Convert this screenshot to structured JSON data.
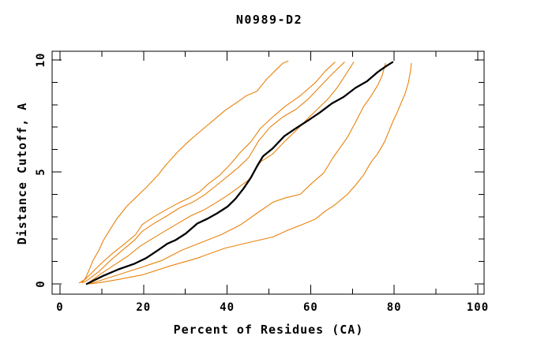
{
  "title": "N0989-D2",
  "axes": {
    "x_title": "Percent of Residues (CA)",
    "y_title": "Distance Cutoff, A",
    "x_tick_labels": [
      "0",
      "20",
      "40",
      "60",
      "80",
      "100"
    ],
    "x_tick_values": [
      0,
      20,
      40,
      60,
      80,
      100
    ],
    "x_minor_step": 10,
    "y_tick_labels": [
      "0",
      "5",
      "10"
    ],
    "y_tick_values": [
      0,
      5,
      10
    ],
    "y_minor_step": 1
  },
  "colors": {
    "model_curve": "#ea820c",
    "highlight_curve": "#000000",
    "axis": "#000000",
    "background": "#ffffff"
  },
  "chart_data": {
    "type": "line",
    "title": "N0989-D2",
    "xlabel": "Percent of Residues (CA)",
    "ylabel": "Distance Cutoff, A",
    "xlim": [
      0,
      101.5
    ],
    "ylim": [
      0,
      10.4
    ],
    "grid": false,
    "legend": "none",
    "x_units": "percent",
    "y_units": "angstrom",
    "series": [
      {
        "id": "model-curve-1",
        "color": "#ea820c",
        "width": 1.1,
        "points": [
          [
            4.6,
            0.05
          ],
          [
            5.5,
            0.1
          ],
          [
            6.2,
            0.3
          ],
          [
            6.8,
            0.55
          ],
          [
            7.9,
            1.05
          ],
          [
            9.3,
            1.5
          ],
          [
            10.4,
            1.95
          ],
          [
            11.7,
            2.35
          ],
          [
            13.6,
            2.9
          ],
          [
            15.9,
            3.45
          ],
          [
            18.1,
            3.85
          ],
          [
            20.6,
            4.3
          ],
          [
            23.4,
            4.85
          ],
          [
            25.3,
            5.3
          ],
          [
            28.2,
            5.9
          ],
          [
            31.0,
            6.4
          ],
          [
            33.8,
            6.85
          ],
          [
            36.7,
            7.3
          ],
          [
            39.5,
            7.75
          ],
          [
            42.3,
            8.1
          ],
          [
            44.6,
            8.4
          ],
          [
            47.1,
            8.6
          ],
          [
            49.5,
            9.15
          ],
          [
            51.4,
            9.5
          ],
          [
            53.3,
            9.85
          ],
          [
            54.6,
            9.95
          ]
        ]
      },
      {
        "id": "model-curve-2",
        "color": "#ea820c",
        "width": 1.1,
        "points": [
          [
            5.0,
            0.1
          ],
          [
            6.0,
            0.2
          ],
          [
            7.9,
            0.55
          ],
          [
            9.8,
            0.9
          ],
          [
            12.5,
            1.35
          ],
          [
            15.5,
            1.8
          ],
          [
            18.1,
            2.2
          ],
          [
            19.7,
            2.65
          ],
          [
            22.5,
            3.0
          ],
          [
            25.3,
            3.3
          ],
          [
            28.2,
            3.6
          ],
          [
            31.0,
            3.85
          ],
          [
            33.3,
            4.1
          ],
          [
            35.7,
            4.5
          ],
          [
            38.2,
            4.85
          ],
          [
            40.8,
            5.35
          ],
          [
            43.3,
            5.9
          ],
          [
            45.7,
            6.35
          ],
          [
            48.0,
            6.95
          ],
          [
            50.9,
            7.45
          ],
          [
            53.7,
            7.9
          ],
          [
            57.5,
            8.4
          ],
          [
            61.2,
            9.0
          ],
          [
            63.5,
            9.5
          ],
          [
            65.8,
            9.9
          ]
        ]
      },
      {
        "id": "model-curve-3",
        "color": "#ea820c",
        "width": 1.1,
        "points": [
          [
            5.4,
            0.05
          ],
          [
            6.4,
            0.15
          ],
          [
            9.3,
            0.55
          ],
          [
            12.1,
            1.05
          ],
          [
            14.9,
            1.5
          ],
          [
            17.8,
            1.95
          ],
          [
            19.7,
            2.35
          ],
          [
            22.5,
            2.7
          ],
          [
            25.7,
            3.05
          ],
          [
            28.7,
            3.4
          ],
          [
            31.8,
            3.65
          ],
          [
            34.4,
            3.95
          ],
          [
            37.1,
            4.35
          ],
          [
            40.1,
            4.8
          ],
          [
            42.7,
            5.2
          ],
          [
            45.2,
            5.65
          ],
          [
            47.6,
            6.4
          ],
          [
            50.3,
            7.0
          ],
          [
            53.3,
            7.45
          ],
          [
            56.5,
            7.8
          ],
          [
            59.4,
            8.25
          ],
          [
            62.2,
            8.8
          ],
          [
            65.0,
            9.35
          ],
          [
            68.1,
            9.9
          ]
        ]
      },
      {
        "id": "model-curve-4",
        "color": "#ea820c",
        "width": 1.1,
        "points": [
          [
            6.8,
            0.05
          ],
          [
            9.8,
            0.45
          ],
          [
            13.0,
            0.85
          ],
          [
            16.3,
            1.25
          ],
          [
            19.3,
            1.7
          ],
          [
            21.9,
            2.0
          ],
          [
            25.0,
            2.35
          ],
          [
            28.2,
            2.7
          ],
          [
            31.4,
            3.05
          ],
          [
            34.4,
            3.3
          ],
          [
            37.1,
            3.6
          ],
          [
            40.1,
            3.95
          ],
          [
            42.3,
            4.25
          ],
          [
            45.2,
            4.65
          ],
          [
            48.0,
            5.45
          ],
          [
            50.9,
            5.8
          ],
          [
            53.7,
            6.35
          ],
          [
            56.5,
            6.85
          ],
          [
            59.4,
            7.4
          ],
          [
            61.6,
            7.8
          ],
          [
            64.1,
            8.25
          ],
          [
            66.5,
            8.8
          ],
          [
            68.4,
            9.35
          ],
          [
            70.3,
            9.9
          ]
        ]
      },
      {
        "id": "model-curve-5",
        "color": "#ea820c",
        "width": 1.1,
        "points": [
          [
            6.6,
            0.0
          ],
          [
            7.9,
            0.05
          ],
          [
            12.1,
            0.3
          ],
          [
            16.3,
            0.55
          ],
          [
            19.7,
            0.75
          ],
          [
            24.4,
            1.05
          ],
          [
            29.1,
            1.5
          ],
          [
            33.8,
            1.85
          ],
          [
            38.6,
            2.2
          ],
          [
            43.3,
            2.65
          ],
          [
            47.1,
            3.15
          ],
          [
            51.0,
            3.65
          ],
          [
            54.1,
            3.85
          ],
          [
            57.5,
            4.0
          ],
          [
            60.3,
            4.5
          ],
          [
            63.1,
            4.95
          ],
          [
            65.4,
            5.65
          ],
          [
            67.3,
            6.15
          ],
          [
            68.8,
            6.55
          ],
          [
            70.7,
            7.2
          ],
          [
            72.6,
            7.9
          ],
          [
            74.5,
            8.4
          ],
          [
            76.0,
            8.85
          ],
          [
            77.1,
            9.3
          ],
          [
            77.9,
            9.85
          ]
        ]
      },
      {
        "id": "model-curve-6",
        "color": "#ea820c",
        "width": 1.1,
        "points": [
          [
            7.0,
            0.0
          ],
          [
            9.3,
            0.05
          ],
          [
            14.0,
            0.2
          ],
          [
            19.7,
            0.4
          ],
          [
            26.3,
            0.8
          ],
          [
            32.9,
            1.15
          ],
          [
            39.5,
            1.6
          ],
          [
            45.2,
            1.85
          ],
          [
            51.0,
            2.1
          ],
          [
            54.6,
            2.4
          ],
          [
            58.0,
            2.65
          ],
          [
            61.2,
            2.9
          ],
          [
            63.5,
            3.25
          ],
          [
            65.6,
            3.5
          ],
          [
            67.5,
            3.8
          ],
          [
            68.8,
            4.0
          ],
          [
            70.7,
            4.4
          ],
          [
            72.6,
            4.85
          ],
          [
            74.5,
            5.45
          ],
          [
            76.0,
            5.8
          ],
          [
            77.7,
            6.35
          ],
          [
            78.8,
            6.85
          ],
          [
            79.8,
            7.3
          ],
          [
            80.7,
            7.65
          ],
          [
            81.7,
            8.1
          ],
          [
            82.6,
            8.5
          ],
          [
            83.4,
            9.0
          ],
          [
            83.9,
            9.5
          ],
          [
            84.1,
            9.85
          ]
        ]
      },
      {
        "id": "highlighted-curve",
        "color": "#000000",
        "width": 2.3,
        "points": [
          [
            6.4,
            0.0
          ],
          [
            10.2,
            0.35
          ],
          [
            14.0,
            0.65
          ],
          [
            17.8,
            0.9
          ],
          [
            20.6,
            1.15
          ],
          [
            23.4,
            1.5
          ],
          [
            25.7,
            1.8
          ],
          [
            27.6,
            1.95
          ],
          [
            30.1,
            2.25
          ],
          [
            32.9,
            2.7
          ],
          [
            35.2,
            2.9
          ],
          [
            37.6,
            3.15
          ],
          [
            40.1,
            3.45
          ],
          [
            42.0,
            3.8
          ],
          [
            43.9,
            4.25
          ],
          [
            45.7,
            4.75
          ],
          [
            47.3,
            5.3
          ],
          [
            48.6,
            5.7
          ],
          [
            50.9,
            6.05
          ],
          [
            53.7,
            6.6
          ],
          [
            56.5,
            6.95
          ],
          [
            59.4,
            7.3
          ],
          [
            62.2,
            7.65
          ],
          [
            65.0,
            8.05
          ],
          [
            67.9,
            8.35
          ],
          [
            70.7,
            8.75
          ],
          [
            73.5,
            9.05
          ],
          [
            76.0,
            9.45
          ],
          [
            78.3,
            9.75
          ],
          [
            79.6,
            9.9
          ]
        ]
      }
    ]
  }
}
